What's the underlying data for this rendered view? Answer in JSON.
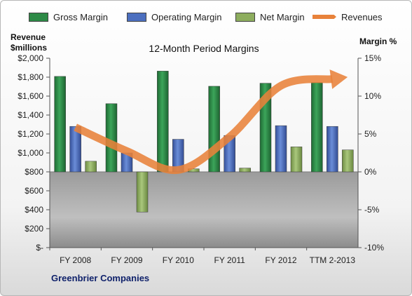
{
  "chart_data": {
    "type": "bar",
    "title": "12-Month Period Margins",
    "ylabel_left": "Revenue $millions",
    "ylabel_right": "Margin %",
    "categories": [
      "FY 2008",
      "FY 2009",
      "FY 2010",
      "FY 2011",
      "FY 2012",
      "TTM 2-2013"
    ],
    "left_axis": {
      "ylim": [
        0,
        2000
      ],
      "ticks": [
        "$-",
        "$200",
        "$400",
        "$600",
        "$800",
        "$1,000",
        "$1,200",
        "$1,400",
        "$1,600",
        "$1,800",
        "$2,000"
      ],
      "tick_values": [
        0,
        200,
        400,
        600,
        800,
        1000,
        1200,
        1400,
        1600,
        1800,
        2000
      ]
    },
    "right_axis": {
      "ylim": [
        -10,
        15
      ],
      "ticks": [
        "-10%",
        "-5%",
        "0%",
        "5%",
        "10%",
        "15%"
      ],
      "tick_values": [
        -10,
        -5,
        0,
        5,
        10,
        15
      ]
    },
    "series": [
      {
        "name": "Gross Margin",
        "axis": "right",
        "color": "#2d8a46",
        "values": [
          12.6,
          9.0,
          13.3,
          11.3,
          11.7,
          11.8
        ]
      },
      {
        "name": "Operating Margin",
        "axis": "right",
        "color": "#4c6fbf",
        "values": [
          6.0,
          2.5,
          4.3,
          4.8,
          6.1,
          6.0
        ]
      },
      {
        "name": "Net Margin",
        "axis": "right",
        "color": "#8dad5e",
        "values": [
          1.4,
          -5.3,
          0.4,
          0.5,
          3.3,
          2.9
        ]
      },
      {
        "name": "Revenues",
        "axis": "left",
        "type": "line",
        "color": "#e8823a",
        "values": [
          1270,
          1020,
          820,
          1170,
          1710,
          1780
        ]
      }
    ],
    "grid": false,
    "legend_position": "top"
  },
  "company_name": "Greenbrier Companies"
}
